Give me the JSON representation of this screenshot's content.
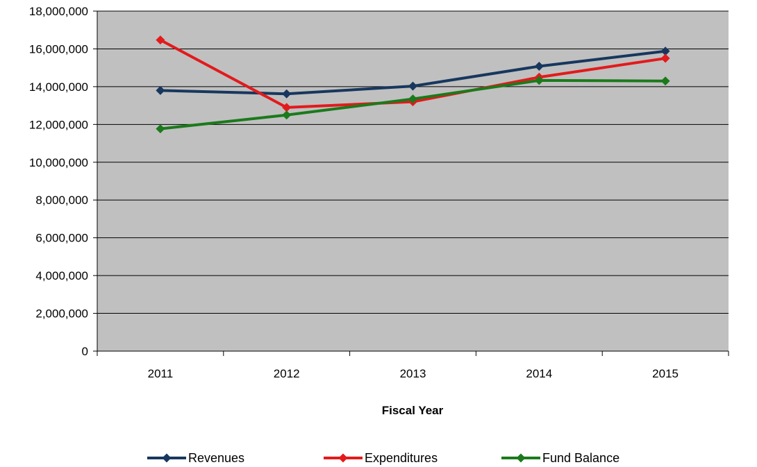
{
  "chart_data": {
    "type": "line",
    "title": "",
    "xlabel": "Fiscal Year",
    "ylabel": "",
    "categories": [
      "2011",
      "2012",
      "2013",
      "2014",
      "2015"
    ],
    "ylim": [
      0,
      18000000
    ],
    "yticks": [
      0,
      2000000,
      4000000,
      6000000,
      8000000,
      10000000,
      12000000,
      14000000,
      16000000,
      18000000
    ],
    "ytick_labels": [
      "0",
      "2,000,000",
      "4,000,000",
      "6,000,000",
      "8,000,000",
      "10,000,000",
      "12,000,000",
      "14,000,000",
      "16,000,000",
      "18,000,000"
    ],
    "grid": true,
    "legend_position": "bottom",
    "plot_background": "#c0c0c0",
    "series": [
      {
        "name": "Revenues",
        "color": "#17375e",
        "values": [
          13800000,
          13620000,
          14030000,
          15080000,
          15880000
        ]
      },
      {
        "name": "Expenditures",
        "color": "#e31a1c",
        "values": [
          16470000,
          12900000,
          13200000,
          14500000,
          15500000
        ]
      },
      {
        "name": "Fund Balance",
        "color": "#1b7a1b",
        "values": [
          11770000,
          12500000,
          13350000,
          14330000,
          14300000
        ]
      }
    ]
  }
}
